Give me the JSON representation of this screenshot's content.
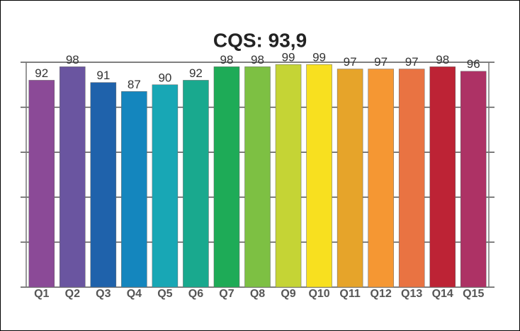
{
  "chart_data": {
    "type": "bar",
    "title": "CQS: 93,9",
    "categories": [
      "Q1",
      "Q2",
      "Q3",
      "Q4",
      "Q5",
      "Q6",
      "Q7",
      "Q8",
      "Q9",
      "Q10",
      "Q11",
      "Q12",
      "Q13",
      "Q14",
      "Q15"
    ],
    "values": [
      92,
      98,
      91,
      87,
      90,
      92,
      98,
      98,
      99,
      99,
      97,
      97,
      97,
      98,
      96
    ],
    "colors": [
      "#8b4a97",
      "#6a55a0",
      "#1f62ab",
      "#1486be",
      "#18a7b5",
      "#19a98e",
      "#1eab57",
      "#7dc043",
      "#c5d435",
      "#f8e01f",
      "#e6a42a",
      "#f59733",
      "#e97342",
      "#bd2335",
      "#ad3265"
    ],
    "ylim": [
      0,
      100
    ],
    "yticks": [
      0,
      20,
      40,
      60,
      80,
      100
    ],
    "grid": true
  }
}
